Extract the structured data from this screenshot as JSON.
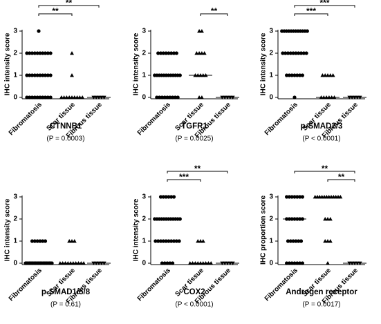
{
  "chart_data": [
    {
      "type": "strip",
      "title": "CTNNB1",
      "subtitle": "(P = 0.0003)",
      "y_label": "IHC intensity score",
      "categories": [
        "Fibromatosis",
        "Scar tissue",
        "Fibrous tissue"
      ],
      "markers": [
        "circle",
        "triangle",
        "triangle-down"
      ],
      "values": [
        [
          3,
          2,
          2,
          2,
          2,
          2,
          2,
          2,
          2,
          2,
          2,
          1,
          1,
          1,
          1,
          1,
          1,
          1,
          1,
          1,
          1,
          0,
          0,
          0,
          0,
          0,
          0,
          0,
          0,
          0,
          0
        ],
        [
          2,
          1,
          0,
          0,
          0,
          0,
          0,
          0,
          0,
          0,
          0
        ],
        [
          0,
          0,
          0,
          0,
          0
        ]
      ],
      "medians": [
        1,
        0,
        0
      ],
      "ylim": [
        0,
        3
      ],
      "yticks": [
        0,
        1,
        2,
        3
      ],
      "brackets": [
        {
          "from": 0,
          "to": 1,
          "label": "**"
        },
        {
          "from": 0,
          "to": 2,
          "label": "**"
        }
      ]
    },
    {
      "type": "strip",
      "title": "TGFR1",
      "subtitle": "(P = 0.0025)",
      "y_label": "IHC intensity score",
      "categories": [
        "Fibromatosis",
        "Scar tissue",
        "Fibrous tissue"
      ],
      "markers": [
        "circle",
        "triangle",
        "triangle-down"
      ],
      "values": [
        [
          2,
          2,
          2,
          2,
          2,
          2,
          2,
          2,
          1,
          1,
          1,
          1,
          1,
          1,
          1,
          1,
          1,
          1,
          1,
          1,
          0,
          0,
          0,
          0,
          0,
          0,
          0,
          0,
          0
        ],
        [
          3,
          3,
          2,
          2,
          2,
          2,
          1,
          1,
          1,
          1,
          1,
          0,
          0
        ],
        [
          0,
          0,
          0,
          0,
          0
        ]
      ],
      "medians": [
        1,
        1,
        0
      ],
      "ylim": [
        0,
        3
      ],
      "yticks": [
        0,
        1,
        2,
        3
      ],
      "brackets": [
        {
          "from": 1,
          "to": 2,
          "label": "**"
        }
      ]
    },
    {
      "type": "strip",
      "title": "p-SMAD2/3",
      "subtitle": "(P < 0.0001)",
      "y_label": "IHC intensity score",
      "categories": [
        "Fibromatosis",
        "Scar tissue",
        "Fibrous tissue"
      ],
      "markers": [
        "circle",
        "triangle",
        "triangle-down"
      ],
      "values": [
        [
          3,
          3,
          3,
          3,
          3,
          3,
          3,
          3,
          3,
          3,
          3,
          3,
          2,
          2,
          2,
          2,
          2,
          2,
          2,
          2,
          2,
          2,
          1,
          1,
          1,
          1,
          1,
          1,
          1,
          0
        ],
        [
          1,
          1,
          1,
          1,
          1,
          0,
          0,
          0,
          0,
          0,
          0
        ],
        [
          0,
          0,
          0,
          0,
          0
        ]
      ],
      "medians": [
        2,
        0,
        0
      ],
      "ylim": [
        0,
        3
      ],
      "yticks": [
        0,
        1,
        2,
        3
      ],
      "brackets": [
        {
          "from": 0,
          "to": 1,
          "label": "***"
        },
        {
          "from": 0,
          "to": 2,
          "label": "***"
        }
      ]
    },
    {
      "type": "strip",
      "title": "p-SMAD1/5/8",
      "subtitle": "(P = 0.61)",
      "y_label": "IHC intensity score",
      "categories": [
        "Fibromatosis",
        "Scar tissue",
        "Fibrous tissue"
      ],
      "markers": [
        "circle",
        "triangle",
        "triangle-down"
      ],
      "values": [
        [
          1,
          1,
          1,
          1,
          1,
          1,
          0,
          0,
          0,
          0,
          0,
          0,
          0,
          0,
          0,
          0,
          0,
          0,
          0,
          0,
          0,
          0,
          0,
          0,
          0,
          0,
          0,
          0
        ],
        [
          1,
          1,
          1,
          0,
          0,
          0,
          0,
          0,
          0,
          0,
          0,
          0,
          0
        ],
        [
          0,
          0,
          0,
          0,
          0
        ]
      ],
      "medians": [
        0,
        0,
        0
      ],
      "ylim": [
        0,
        3
      ],
      "yticks": [
        0,
        1,
        2,
        3
      ],
      "brackets": []
    },
    {
      "type": "strip",
      "title": "COX2",
      "subtitle": "(P < 0.0001)",
      "y_label": "IHC intensity score",
      "categories": [
        "Fibromatosis",
        "Scar tissue",
        "Fibrous tissue"
      ],
      "markers": [
        "circle",
        "triangle",
        "triangle-down"
      ],
      "values": [
        [
          3,
          3,
          3,
          3,
          3,
          3,
          2,
          2,
          2,
          2,
          2,
          2,
          2,
          2,
          2,
          2,
          2,
          2,
          1,
          1,
          1,
          1,
          1,
          1,
          1,
          1,
          1,
          1,
          0,
          0,
          0,
          0,
          0
        ],
        [
          1,
          1,
          1,
          0,
          0,
          0,
          0,
          0,
          0,
          0,
          0,
          0
        ],
        [
          0,
          0,
          0,
          0,
          0
        ]
      ],
      "medians": [
        2,
        0,
        0
      ],
      "ylim": [
        0,
        3
      ],
      "yticks": [
        0,
        1,
        2,
        3
      ],
      "brackets": [
        {
          "from": 0,
          "to": 1,
          "label": "***"
        },
        {
          "from": 0,
          "to": 2,
          "label": "**"
        }
      ]
    },
    {
      "type": "strip",
      "title": "Androgen receptor",
      "subtitle": "(P = 0.0017)",
      "y_label": "IHC proportion score",
      "categories": [
        "Fibromatosis",
        "Scar tissue",
        "Fibrous tissue"
      ],
      "markers": [
        "circle",
        "triangle",
        "triangle-down"
      ],
      "values": [
        [
          3,
          3,
          3,
          3,
          3,
          3,
          3,
          2,
          2,
          2,
          2,
          2,
          2,
          2,
          1,
          1,
          1,
          1,
          1,
          1,
          0,
          0,
          0,
          0,
          0,
          0,
          0
        ],
        [
          3,
          3,
          3,
          3,
          3,
          3,
          3,
          3,
          3,
          3,
          3,
          3,
          2,
          2,
          2,
          1,
          1,
          1,
          0
        ],
        [
          0,
          0,
          0,
          0,
          0
        ]
      ],
      "medians": [
        2,
        3,
        0
      ],
      "ylim": [
        0,
        3
      ],
      "yticks": [
        0,
        1,
        2,
        3
      ],
      "brackets": [
        {
          "from": 1,
          "to": 2,
          "label": "**"
        },
        {
          "from": 0,
          "to": 2,
          "label": "**"
        }
      ]
    }
  ]
}
